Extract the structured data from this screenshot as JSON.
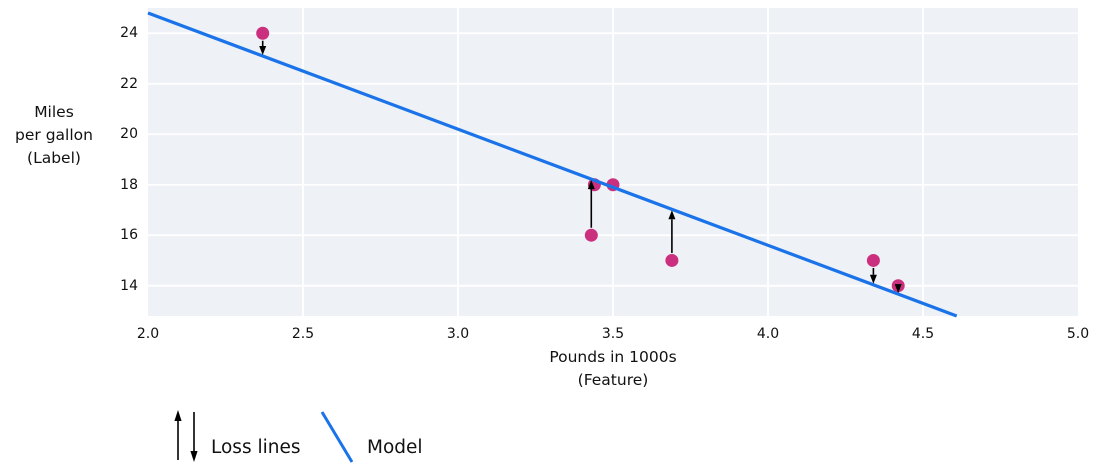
{
  "figure": {
    "background": "#ffffff"
  },
  "chart_data": {
    "type": "scatter",
    "title": "",
    "xlabel": "Pounds in 1000s\n(Feature)",
    "ylabel": "Miles\nper gallon\n(Label)",
    "xlim": [
      2.0,
      5.0
    ],
    "ylim": [
      12.8,
      25.0
    ],
    "xticks": [
      "2.0",
      "2.5",
      "3.0",
      "3.5",
      "4.0",
      "4.5",
      "5.0"
    ],
    "yticks": [
      "14",
      "16",
      "18",
      "20",
      "22",
      "24"
    ],
    "grid": true,
    "points": [
      {
        "x": 2.37,
        "y": 24
      },
      {
        "x": 3.43,
        "y": 16
      },
      {
        "x": 3.44,
        "y": 18
      },
      {
        "x": 3.5,
        "y": 18
      },
      {
        "x": 3.69,
        "y": 15
      },
      {
        "x": 4.34,
        "y": 15
      },
      {
        "x": 4.42,
        "y": 14
      }
    ],
    "model": {
      "weight": -4.6,
      "bias": 34
    },
    "loss_threshold": 0.3,
    "colors": {
      "point": "#cb307e",
      "model_line": "#1a73e8",
      "loss_arrow": "#000000",
      "plot_bg": "#eef1f6",
      "grid": "#ffffff",
      "text": "#111111"
    }
  },
  "legend": {
    "loss_label": "Loss lines",
    "model_label": "Model"
  }
}
